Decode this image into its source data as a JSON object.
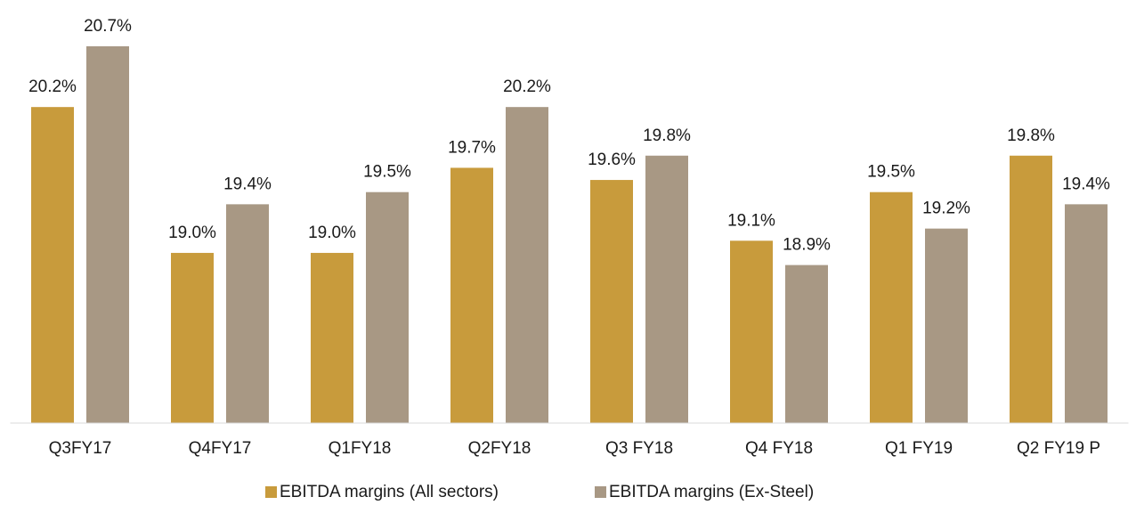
{
  "chart_data": {
    "type": "bar",
    "categories": [
      "Q3FY17",
      "Q4FY17",
      "Q1FY18",
      "Q2FY18",
      "Q3 FY18",
      "Q4 FY18",
      "Q1 FY19",
      "Q2 FY19 P"
    ],
    "series": [
      {
        "name": "EBITDA margins (All sectors)",
        "color": "#c89b3c",
        "values": [
          20.2,
          19.0,
          19.0,
          19.7,
          19.6,
          19.1,
          19.5,
          19.8
        ],
        "value_labels": [
          "20.2%",
          "19.0%",
          "19.0%",
          "19.7%",
          "19.6%",
          "19.1%",
          "19.5%",
          "19.8%"
        ]
      },
      {
        "name": "EBITDA margins (Ex-Steel)",
        "color": "#a89884",
        "values": [
          20.7,
          19.4,
          19.5,
          20.2,
          19.8,
          18.9,
          19.2,
          19.4
        ],
        "value_labels": [
          "20.7%",
          "19.4%",
          "19.5%",
          "20.2%",
          "19.8%",
          "18.9%",
          "19.2%",
          "19.4%"
        ]
      }
    ],
    "ylim": [
      17.6,
      21.0
    ],
    "legend": "bottom"
  }
}
